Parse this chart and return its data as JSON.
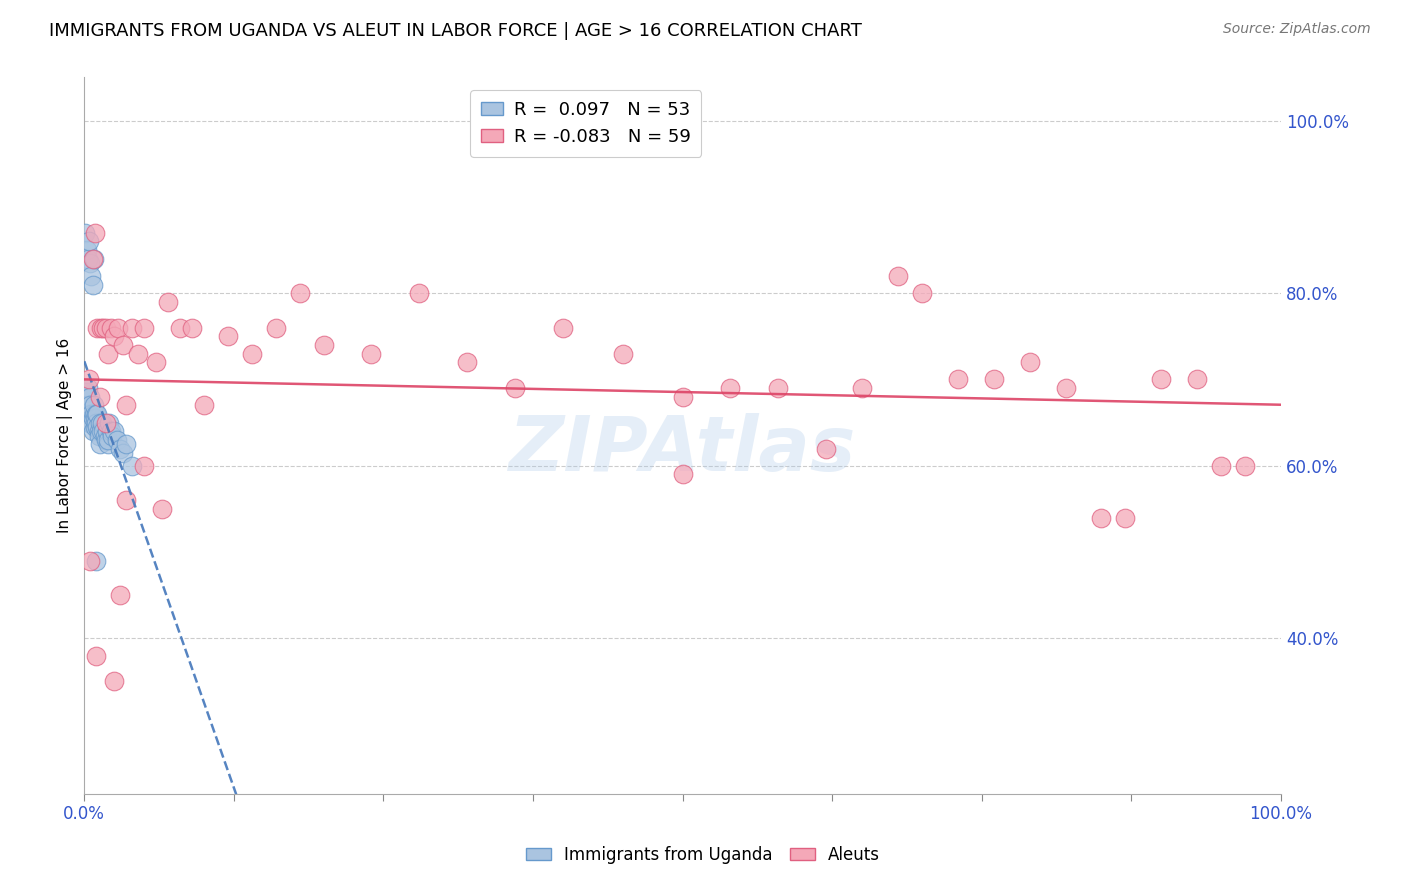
{
  "title": "IMMIGRANTS FROM UGANDA VS ALEUT IN LABOR FORCE | AGE > 16 CORRELATION CHART",
  "source": "Source: ZipAtlas.com",
  "ylabel": "In Labor Force | Age > 16",
  "xlim": [
    0.0,
    1.0
  ],
  "ylim": [
    0.22,
    1.05
  ],
  "yticks": [
    0.4,
    0.6,
    0.8,
    1.0
  ],
  "ytick_labels": [
    "40.0%",
    "60.0%",
    "80.0%",
    "100.0%"
  ],
  "uganda_color": "#aac4e0",
  "uganda_edge_color": "#6699cc",
  "aleut_color": "#f4a8b8",
  "aleut_edge_color": "#e06080",
  "uganda_line_color": "#4477bb",
  "aleut_line_color": "#dd4466",
  "R_uganda": 0.097,
  "N_uganda": 53,
  "R_aleut": -0.083,
  "N_aleut": 59,
  "watermark": "ZIPAtlas",
  "uganda_x": [
    0.001,
    0.001,
    0.002,
    0.002,
    0.003,
    0.003,
    0.004,
    0.004,
    0.005,
    0.005,
    0.005,
    0.006,
    0.006,
    0.007,
    0.007,
    0.008,
    0.008,
    0.009,
    0.009,
    0.01,
    0.01,
    0.011,
    0.011,
    0.012,
    0.012,
    0.013,
    0.013,
    0.014,
    0.015,
    0.016,
    0.017,
    0.018,
    0.019,
    0.02,
    0.02,
    0.021,
    0.022,
    0.023,
    0.025,
    0.027,
    0.03,
    0.032,
    0.035,
    0.001,
    0.002,
    0.003,
    0.004,
    0.005,
    0.006,
    0.007,
    0.008,
    0.01,
    0.04
  ],
  "uganda_y": [
    0.68,
    0.67,
    0.685,
    0.66,
    0.69,
    0.665,
    0.67,
    0.65,
    0.68,
    0.66,
    0.67,
    0.65,
    0.66,
    0.655,
    0.64,
    0.66,
    0.67,
    0.645,
    0.655,
    0.66,
    0.65,
    0.66,
    0.645,
    0.64,
    0.635,
    0.65,
    0.625,
    0.64,
    0.65,
    0.64,
    0.635,
    0.63,
    0.64,
    0.625,
    0.63,
    0.65,
    0.64,
    0.635,
    0.64,
    0.63,
    0.62,
    0.615,
    0.625,
    0.87,
    0.85,
    0.84,
    0.86,
    0.835,
    0.82,
    0.81,
    0.84,
    0.49,
    0.6
  ],
  "aleut_x": [
    0.004,
    0.007,
    0.009,
    0.011,
    0.013,
    0.014,
    0.016,
    0.018,
    0.02,
    0.022,
    0.025,
    0.028,
    0.032,
    0.035,
    0.04,
    0.045,
    0.05,
    0.06,
    0.07,
    0.08,
    0.09,
    0.1,
    0.12,
    0.14,
    0.16,
    0.18,
    0.2,
    0.24,
    0.28,
    0.32,
    0.36,
    0.4,
    0.45,
    0.5,
    0.54,
    0.58,
    0.62,
    0.65,
    0.68,
    0.7,
    0.73,
    0.76,
    0.79,
    0.82,
    0.85,
    0.87,
    0.9,
    0.93,
    0.95,
    0.97,
    0.005,
    0.01,
    0.018,
    0.025,
    0.03,
    0.035,
    0.05,
    0.065,
    0.5
  ],
  "aleut_y": [
    0.7,
    0.84,
    0.87,
    0.76,
    0.68,
    0.76,
    0.76,
    0.76,
    0.73,
    0.76,
    0.75,
    0.76,
    0.74,
    0.67,
    0.76,
    0.73,
    0.76,
    0.72,
    0.79,
    0.76,
    0.76,
    0.67,
    0.75,
    0.73,
    0.76,
    0.8,
    0.74,
    0.73,
    0.8,
    0.72,
    0.69,
    0.76,
    0.73,
    0.68,
    0.69,
    0.69,
    0.62,
    0.69,
    0.82,
    0.8,
    0.7,
    0.7,
    0.72,
    0.69,
    0.54,
    0.54,
    0.7,
    0.7,
    0.6,
    0.6,
    0.49,
    0.38,
    0.65,
    0.35,
    0.45,
    0.56,
    0.6,
    0.55,
    0.59
  ]
}
